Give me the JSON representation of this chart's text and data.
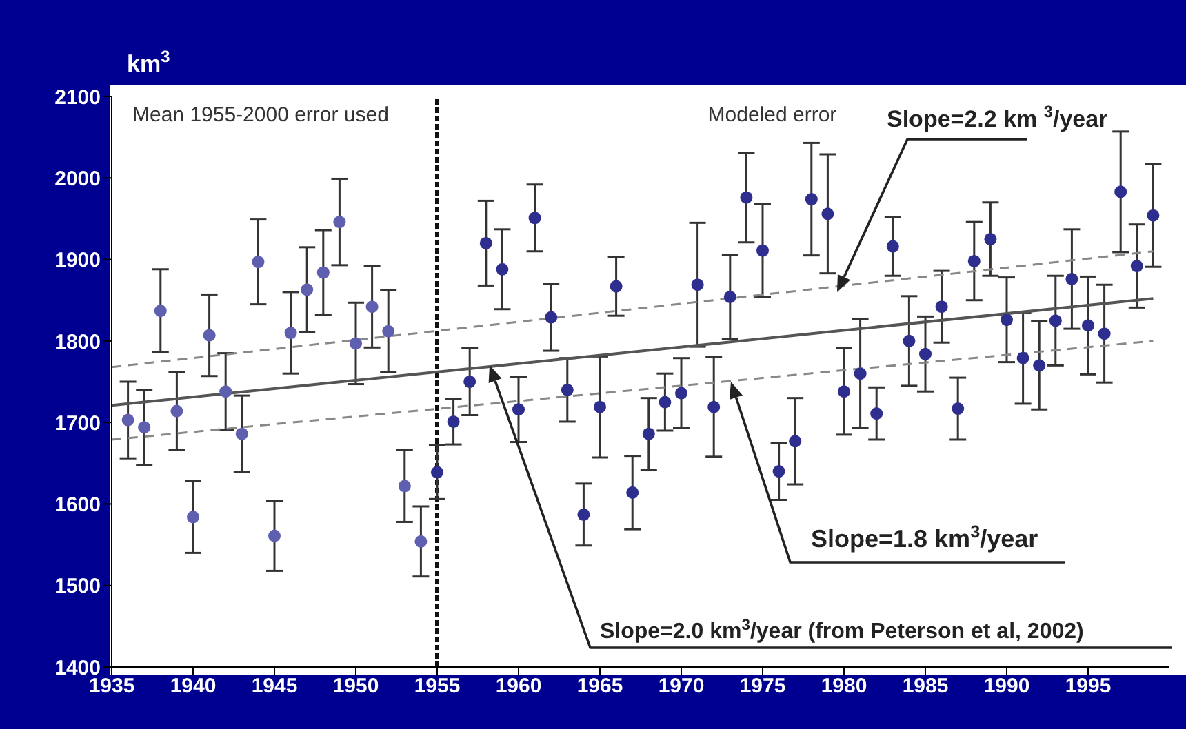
{
  "chart_data": {
    "type": "scatter",
    "ylabel": "km$^{3}$",
    "xlim": [
      1935,
      2000
    ],
    "ylim": [
      1400,
      2100
    ],
    "xticks": [
      1935,
      1940,
      1945,
      1950,
      1955,
      1960,
      1965,
      1970,
      1975,
      1980,
      1985,
      1990,
      1995
    ],
    "yticks": [
      1400,
      1500,
      1600,
      1700,
      1800,
      1900,
      2000,
      2100
    ],
    "marker": "circle",
    "series": [
      {
        "color": "#5f5fb0",
        "x": [
          1936,
          1937,
          1938,
          1939,
          1940,
          1941,
          1942,
          1943,
          1944,
          1945,
          1946,
          1947,
          1948,
          1949,
          1950,
          1951,
          1952,
          1953,
          1954
        ],
        "values": [
          1703,
          1694,
          1837,
          1714,
          1584,
          1807,
          1738,
          1686,
          1897,
          1561,
          1810,
          1863,
          1884,
          1946,
          1797,
          1842,
          1812,
          1622,
          1554
        ],
        "errors": [
          47,
          46,
          51,
          48,
          44,
          50,
          47,
          47,
          52,
          43,
          50,
          52,
          52,
          53,
          50,
          50,
          50,
          44,
          43
        ]
      },
      {
        "color": "#2e2e8e",
        "x": [
          1955,
          1956,
          1957,
          1958,
          1959,
          1960,
          1961,
          1962,
          1963,
          1964,
          1965,
          1966,
          1967,
          1968,
          1969,
          1970,
          1971,
          1972,
          1973,
          1974,
          1975,
          1976,
          1977,
          1978,
          1979,
          1980,
          1981,
          1982,
          1983,
          1984,
          1985,
          1986,
          1987,
          1988,
          1989,
          1990,
          1991,
          1992,
          1993,
          1994,
          1995,
          1996,
          1997,
          1998,
          1999
        ],
        "values": [
          1639,
          1701,
          1750,
          1920,
          1888,
          1716,
          1951,
          1829,
          1740,
          1587,
          1719,
          1867,
          1614,
          1686,
          1725,
          1736,
          1869,
          1719,
          1854,
          1976,
          1911,
          1640,
          1677,
          1974,
          1956,
          1738,
          1760,
          1711,
          1916,
          1800,
          1784,
          1842,
          1717,
          1898,
          1925,
          1826,
          1779,
          1770,
          1825,
          1876,
          1819,
          1809,
          1983,
          1892,
          1954
        ],
        "errors": [
          33,
          28,
          41,
          52,
          49,
          40,
          41,
          41,
          39,
          38,
          62,
          36,
          45,
          44,
          35,
          43,
          76,
          61,
          52,
          55,
          57,
          35,
          53,
          69,
          73,
          53,
          67,
          32,
          36,
          55,
          46,
          44,
          38,
          48,
          45,
          52,
          56,
          54,
          55,
          61,
          60,
          60,
          74,
          51,
          63
        ]
      },
      {
        "type": "line",
        "color": "#555555",
        "line_style": "solid",
        "marker": "none",
        "x": [
          1935,
          1999
        ],
        "values": [
          1721,
          1852
        ]
      },
      {
        "type": "line",
        "color": "#888888",
        "line_style": "dashed",
        "marker": "none",
        "x": [
          1935,
          1999
        ],
        "values": [
          1768,
          1910
        ]
      },
      {
        "type": "line",
        "color": "#888888",
        "line_style": "dashed",
        "marker": "none",
        "x": [
          1935,
          1999
        ],
        "values": [
          1679,
          1800
        ]
      }
    ],
    "ref_lines": [
      {
        "axis": "x",
        "value": 1955,
        "color": "#111111",
        "line_style": "dashed"
      }
    ],
    "annotations": [
      "Mean 1955-2000 error used",
      "Modeled error",
      "Slope=2.2 km $^{3}$/year",
      "Slope=1.8 km$^{3}$/year",
      "Slope=2.0 km$^{3}$/year (from Peterson et al, 2002)"
    ]
  }
}
